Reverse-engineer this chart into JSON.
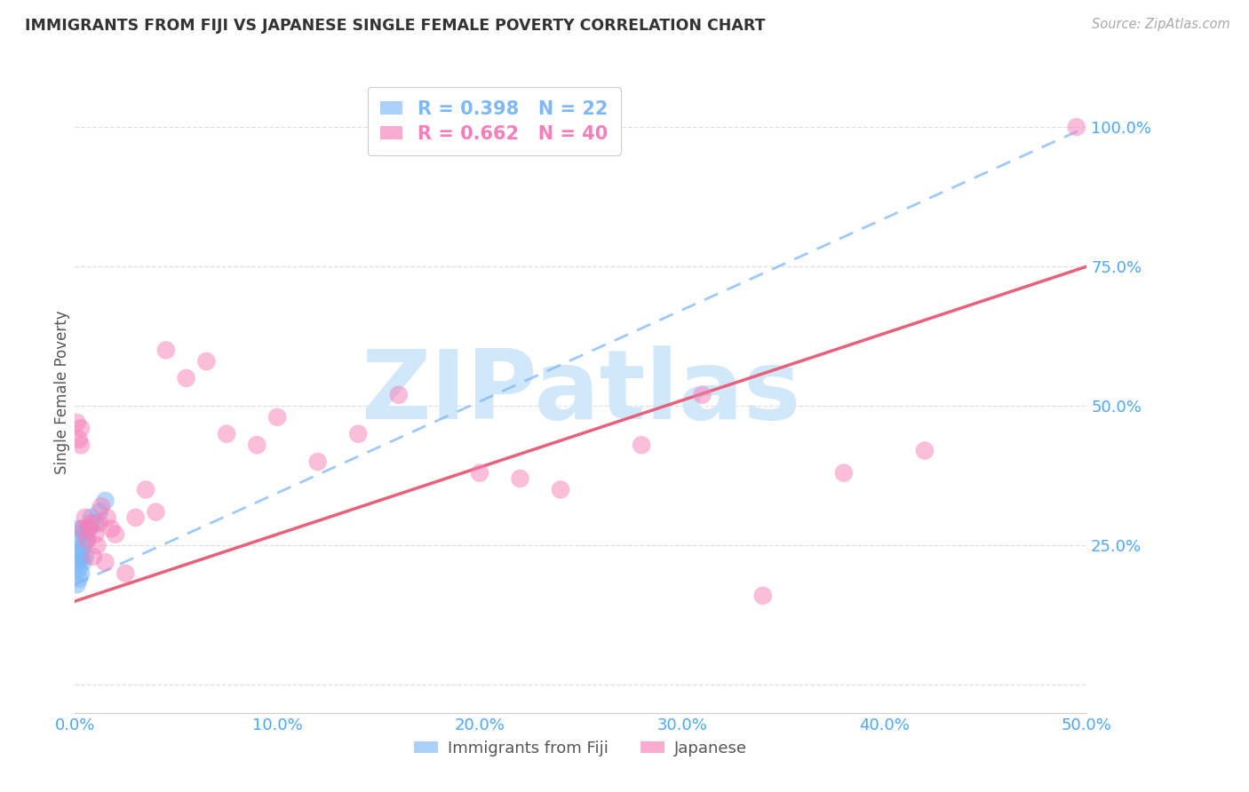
{
  "title": "IMMIGRANTS FROM FIJI VS JAPANESE SINGLE FEMALE POVERTY CORRELATION CHART",
  "source": "Source: ZipAtlas.com",
  "tick_color": "#4da6ff",
  "ylabel": "Single Female Poverty",
  "xlim": [
    0.0,
    0.5
  ],
  "ylim": [
    -0.05,
    1.1
  ],
  "yticks": [
    0.0,
    0.25,
    0.5,
    0.75,
    1.0
  ],
  "ytick_labels": [
    "",
    "25.0%",
    "50.0%",
    "75.0%",
    "100.0%"
  ],
  "xticks": [
    0.0,
    0.1,
    0.2,
    0.3,
    0.4,
    0.5
  ],
  "xtick_labels": [
    "0.0%",
    "10.0%",
    "20.0%",
    "30.0%",
    "40.0%",
    "50.0%"
  ],
  "legend_fiji_label": "Immigrants from Fiji",
  "legend_japanese_label": "Japanese",
  "fiji_R": "0.398",
  "fiji_N": "22",
  "japanese_R": "0.662",
  "japanese_N": "40",
  "fiji_color": "#7eb8f7",
  "japanese_color": "#f77eb8",
  "fiji_trend_color": "#7eb8f7",
  "japanese_trend_color": "#e8607a",
  "watermark": "ZIPatlas",
  "watermark_color": "#d0e8fa",
  "grid_color": "#e0e0e0",
  "fiji_x": [
    0.001,
    0.001,
    0.001,
    0.002,
    0.002,
    0.002,
    0.002,
    0.003,
    0.003,
    0.003,
    0.003,
    0.004,
    0.004,
    0.004,
    0.005,
    0.005,
    0.006,
    0.007,
    0.008,
    0.01,
    0.012,
    0.015
  ],
  "fiji_y": [
    0.26,
    0.22,
    0.18,
    0.28,
    0.24,
    0.21,
    0.19,
    0.27,
    0.24,
    0.23,
    0.2,
    0.28,
    0.25,
    0.22,
    0.27,
    0.23,
    0.26,
    0.28,
    0.3,
    0.29,
    0.31,
    0.33
  ],
  "jap_x": [
    0.001,
    0.002,
    0.003,
    0.003,
    0.004,
    0.005,
    0.006,
    0.007,
    0.008,
    0.009,
    0.01,
    0.011,
    0.012,
    0.013,
    0.015,
    0.016,
    0.018,
    0.02,
    0.025,
    0.03,
    0.035,
    0.04,
    0.045,
    0.055,
    0.065,
    0.075,
    0.09,
    0.1,
    0.12,
    0.14,
    0.16,
    0.2,
    0.22,
    0.24,
    0.28,
    0.31,
    0.34,
    0.38,
    0.42,
    0.495
  ],
  "jap_y": [
    0.47,
    0.44,
    0.43,
    0.46,
    0.28,
    0.3,
    0.26,
    0.28,
    0.29,
    0.23,
    0.27,
    0.25,
    0.29,
    0.32,
    0.22,
    0.3,
    0.28,
    0.27,
    0.2,
    0.3,
    0.35,
    0.31,
    0.6,
    0.55,
    0.58,
    0.45,
    0.43,
    0.48,
    0.4,
    0.45,
    0.52,
    0.38,
    0.37,
    0.35,
    0.43,
    0.52,
    0.16,
    0.38,
    0.42,
    1.0
  ],
  "fiji_trend_x0": 0.0,
  "fiji_trend_y0": 0.18,
  "fiji_trend_x1": 0.5,
  "fiji_trend_y1": 1.0,
  "jap_trend_x0": 0.0,
  "jap_trend_y0": 0.15,
  "jap_trend_x1": 0.5,
  "jap_trend_y1": 0.75
}
